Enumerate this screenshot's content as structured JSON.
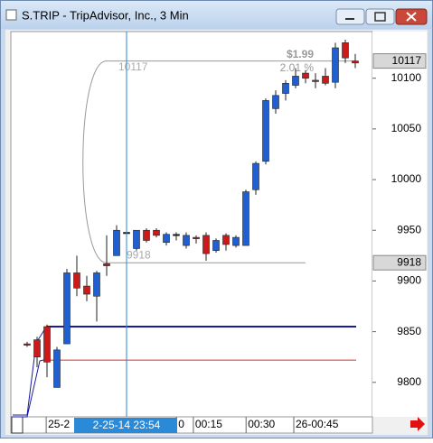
{
  "window": {
    "title": "S.TRIP - TripAdvisor, Inc., 3 Min"
  },
  "chart_data": {
    "type": "candlestick",
    "series": [
      {
        "name": null,
        "up_color": "#1f5fd1",
        "down_color": "#cc1a1a",
        "open": [
          9838,
          9842,
          9855,
          9795,
          9838,
          9908,
          9895,
          9885,
          9917,
          9925,
          9948,
          9932,
          9950,
          9950,
          9938,
          9946,
          9935,
          9943,
          9945,
          9930,
          9945,
          9935,
          9935,
          9990,
          10018,
          10070,
          10085,
          10093,
          10105,
          10098,
          10102,
          10096,
          10135,
          10117
        ],
        "high": [
          9840,
          9845,
          9857,
          9835,
          9912,
          9925,
          9905,
          9910,
          9945,
          9955,
          9950,
          9950,
          9952,
          9952,
          9948,
          9948,
          9948,
          9945,
          9948,
          9942,
          9947,
          9945,
          9990,
          10018,
          10080,
          10088,
          10098,
          10110,
          10108,
          10105,
          10110,
          10135,
          10138,
          10124
        ],
        "low": [
          9835,
          9815,
          9805,
          9795,
          9838,
          9885,
          9880,
          9860,
          9905,
          9925,
          9930,
          9930,
          9938,
          9943,
          9935,
          9940,
          9932,
          9937,
          9920,
          9928,
          9930,
          9933,
          9935,
          9985,
          10015,
          10065,
          10078,
          10090,
          10095,
          10090,
          10093,
          10090,
          10115,
          10110
        ],
        "close": [
          9837,
          9825,
          9820,
          9832,
          9908,
          9893,
          9887,
          9908,
          9915,
          9950,
          9948,
          9950,
          9940,
          9945,
          9946,
          9946,
          9945,
          9942,
          9927,
          9940,
          9936,
          9943,
          9988,
          10016,
          10078,
          10083,
          10095,
          10102,
          10100,
          10097,
          10095,
          10130,
          10120,
          10115
        ]
      }
    ],
    "ylim": [
      9766,
      10146
    ],
    "yticks": [
      9800,
      9850,
      9900,
      9950,
      10000,
      10050,
      10100
    ],
    "xticks": [
      {
        "value": 2.1,
        "label": "25-2"
      },
      {
        "value": 15.2,
        "label": "0"
      },
      {
        "value": 16.9,
        "label": "00:15"
      },
      {
        "value": 22.2,
        "label": "00:30"
      },
      {
        "value": 27,
        "label": "26-00:45"
      }
    ],
    "crosshair": {
      "value": 10,
      "label": "2-25-14 23:54"
    },
    "price_markers": [
      10117,
      9918
    ],
    "levels": [
      {
        "value": 9855,
        "color": "#1a1aa0"
      },
      {
        "value": 9822,
        "color": "#d03030"
      }
    ],
    "measure": {
      "from": 9918,
      "to": 10117,
      "change": "$1.99",
      "percent": "2.01 %",
      "from_label": "9918",
      "to_label": "10117",
      "start": 8,
      "end_to": 33,
      "end_from": 21
    }
  }
}
